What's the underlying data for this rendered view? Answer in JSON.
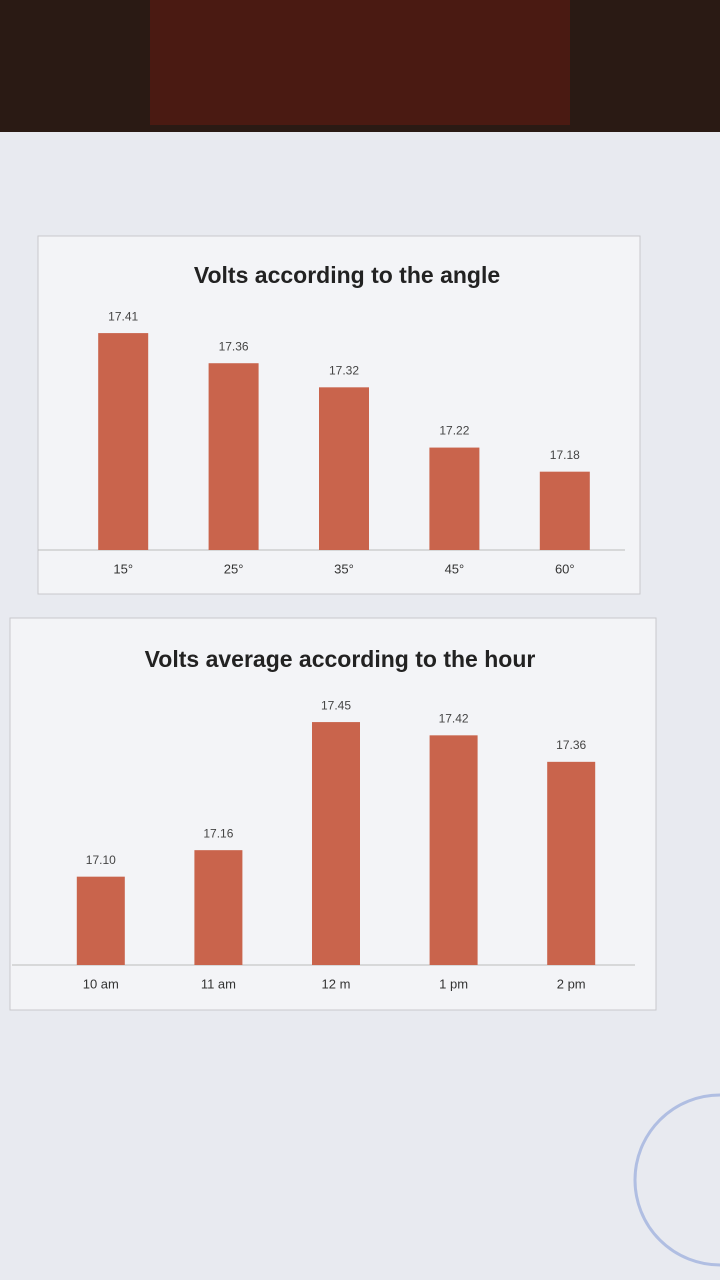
{
  "chart_data": [
    {
      "type": "bar",
      "title": "Volts according to the angle",
      "categories": [
        "15°",
        "25°",
        "35°",
        "45°",
        "60°"
      ],
      "values": [
        17.41,
        17.36,
        17.32,
        17.22,
        17.18
      ],
      "color": "#c9644c",
      "ylim": [
        17.05,
        17.45
      ]
    },
    {
      "type": "bar",
      "title": "Volts average according to the hour",
      "categories": [
        "10 am",
        "11 am",
        "12 m",
        "1 pm",
        "2 pm"
      ],
      "values": [
        17.1,
        17.16,
        17.45,
        17.42,
        17.36
      ],
      "value_labels": [
        "17.10",
        "17.16",
        "17.45",
        "17.42",
        "17.36"
      ],
      "color": "#c9644c",
      "ylim": [
        16.9,
        17.5
      ]
    }
  ]
}
